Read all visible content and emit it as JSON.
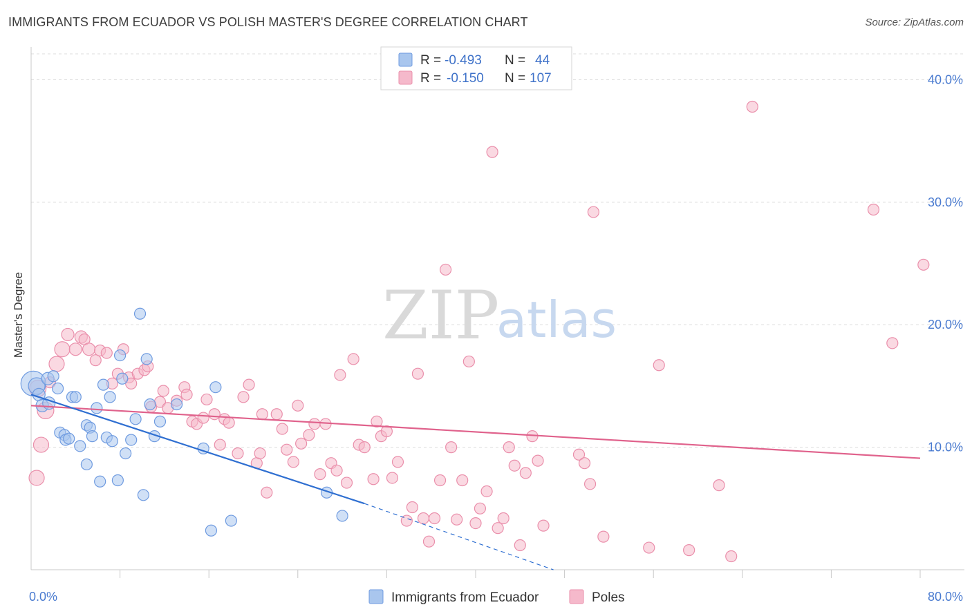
{
  "header": {
    "title": "IMMIGRANTS FROM ECUADOR VS POLISH MASTER'S DEGREE CORRELATION CHART",
    "source": "Source: ZipAtlas.com"
  },
  "watermark": {
    "part1": "ZIP",
    "part2": "atlas"
  },
  "colors": {
    "blue_fill": "#a9c6ee",
    "blue_stroke": "#6f9be0",
    "blue_line": "#2f6fd1",
    "pink_fill": "#f5b9cb",
    "pink_stroke": "#ea8fab",
    "pink_line": "#e0628c",
    "grid": "#dcdcdc",
    "tick_text": "#4a7bd0"
  },
  "legend": {
    "rows": [
      {
        "r_label": "R =",
        "r_value": "-0.493",
        "n_label": "N =",
        "n_value": "44"
      },
      {
        "r_label": "R =",
        "r_value": "-0.150",
        "n_label": "N =",
        "n_value": "107"
      }
    ]
  },
  "bottom_legend": [
    "Immigrants from Ecuador",
    "Poles"
  ],
  "chart_data": {
    "type": "scatter",
    "title": "IMMIGRANTS FROM ECUADOR VS POLISH MASTER'S DEGREE CORRELATION CHART",
    "xlabel": "",
    "ylabel": "Master's Degree",
    "xlim": [
      0,
      80
    ],
    "ylim": [
      0,
      42
    ],
    "x_tick_labels": [
      {
        "value": 0,
        "label": "0.0%"
      },
      {
        "value": 80,
        "label": "80.0%"
      }
    ],
    "y_tick_labels": [
      {
        "value": 10,
        "label": "10.0%"
      },
      {
        "value": 20,
        "label": "20.0%"
      },
      {
        "value": 30,
        "label": "30.0%"
      },
      {
        "value": 40,
        "label": "40.0%"
      }
    ],
    "x_minor_ticks": [
      8,
      16,
      24,
      32,
      40,
      48,
      56,
      64,
      72,
      80
    ],
    "grid": true,
    "legend_position": "top-center",
    "series": [
      {
        "name": "Immigrants from Ecuador",
        "color": "blue",
        "R": -0.493,
        "N": 44,
        "trend": {
          "x": [
            0,
            30
          ],
          "y": [
            14.3,
            5.4
          ],
          "dashed_extension_to": [
            47,
            0
          ]
        },
        "points": [
          [
            0.2,
            15.2,
            18
          ],
          [
            0.5,
            15.0,
            12
          ],
          [
            0.7,
            14.3,
            9
          ],
          [
            1.0,
            13.4,
            9
          ],
          [
            1.5,
            15.6,
            9
          ],
          [
            1.6,
            13.6,
            9
          ],
          [
            2.0,
            15.8,
            8
          ],
          [
            2.4,
            14.8,
            8
          ],
          [
            2.6,
            11.2,
            8
          ],
          [
            3.0,
            11.0,
            8
          ],
          [
            3.1,
            10.6,
            8
          ],
          [
            3.4,
            10.7,
            8
          ],
          [
            3.7,
            14.1,
            8
          ],
          [
            4.0,
            14.1,
            8
          ],
          [
            4.4,
            10.1,
            8
          ],
          [
            5.0,
            11.8,
            8
          ],
          [
            5.0,
            8.6,
            8
          ],
          [
            5.3,
            11.6,
            8
          ],
          [
            5.5,
            10.9,
            8
          ],
          [
            5.9,
            13.2,
            8
          ],
          [
            6.2,
            7.2,
            8
          ],
          [
            6.5,
            15.1,
            8
          ],
          [
            6.8,
            10.8,
            8
          ],
          [
            7.1,
            14.1,
            8
          ],
          [
            7.3,
            10.5,
            8
          ],
          [
            7.8,
            7.3,
            8
          ],
          [
            8.0,
            17.5,
            8
          ],
          [
            8.2,
            15.6,
            8
          ],
          [
            8.5,
            9.5,
            8
          ],
          [
            9.0,
            10.6,
            8
          ],
          [
            9.4,
            12.3,
            8
          ],
          [
            9.8,
            20.9,
            8
          ],
          [
            10.1,
            6.1,
            8
          ],
          [
            10.4,
            17.2,
            8
          ],
          [
            10.7,
            13.5,
            8
          ],
          [
            11.1,
            10.9,
            8
          ],
          [
            11.6,
            12.1,
            8
          ],
          [
            13.1,
            13.5,
            8
          ],
          [
            15.5,
            9.9,
            8
          ],
          [
            16.2,
            3.2,
            8
          ],
          [
            16.6,
            14.9,
            8
          ],
          [
            18.0,
            4.0,
            8
          ],
          [
            26.6,
            6.3,
            8
          ],
          [
            28.0,
            4.4,
            8
          ]
        ]
      },
      {
        "name": "Poles",
        "color": "pink",
        "R": -0.15,
        "N": 107,
        "trend": {
          "x": [
            0,
            80
          ],
          "y": [
            13.4,
            9.1
          ]
        },
        "points": [
          [
            0.5,
            7.5,
            11
          ],
          [
            0.6,
            14.8,
            12
          ],
          [
            0.9,
            10.2,
            11
          ],
          [
            1.3,
            13.0,
            12
          ],
          [
            1.7,
            15.3,
            8
          ],
          [
            2.3,
            16.8,
            11
          ],
          [
            2.8,
            18.0,
            11
          ],
          [
            3.3,
            19.2,
            9
          ],
          [
            4.0,
            18.0,
            9
          ],
          [
            4.5,
            19.0,
            9
          ],
          [
            4.8,
            18.8,
            8
          ],
          [
            5.2,
            18.0,
            9
          ],
          [
            5.8,
            17.1,
            8
          ],
          [
            6.2,
            17.9,
            8
          ],
          [
            6.8,
            17.7,
            8
          ],
          [
            7.3,
            15.2,
            8
          ],
          [
            7.8,
            16.0,
            8
          ],
          [
            8.3,
            18.0,
            8
          ],
          [
            8.8,
            15.7,
            8
          ],
          [
            9.0,
            15.2,
            8
          ],
          [
            9.6,
            16.0,
            8
          ],
          [
            10.2,
            16.3,
            8
          ],
          [
            10.5,
            16.6,
            8
          ],
          [
            10.8,
            13.3,
            8
          ],
          [
            11.6,
            13.7,
            8
          ],
          [
            11.9,
            14.6,
            8
          ],
          [
            12.3,
            13.2,
            8
          ],
          [
            13.1,
            13.8,
            8
          ],
          [
            13.8,
            14.9,
            8
          ],
          [
            14.0,
            14.3,
            8
          ],
          [
            14.5,
            12.1,
            8
          ],
          [
            14.9,
            11.9,
            8
          ],
          [
            15.5,
            12.4,
            8
          ],
          [
            15.8,
            13.9,
            8
          ],
          [
            16.5,
            12.7,
            8
          ],
          [
            17.0,
            10.2,
            8
          ],
          [
            17.4,
            12.3,
            8
          ],
          [
            17.8,
            12.0,
            8
          ],
          [
            18.6,
            9.5,
            8
          ],
          [
            19.1,
            14.1,
            8
          ],
          [
            19.6,
            15.1,
            8
          ],
          [
            20.3,
            8.7,
            8
          ],
          [
            20.6,
            9.5,
            8
          ],
          [
            20.8,
            12.7,
            8
          ],
          [
            21.2,
            6.3,
            8
          ],
          [
            22.1,
            12.7,
            8
          ],
          [
            22.6,
            11.5,
            8
          ],
          [
            23.0,
            9.8,
            8
          ],
          [
            23.6,
            8.8,
            8
          ],
          [
            24.0,
            13.4,
            8
          ],
          [
            24.3,
            10.3,
            8
          ],
          [
            25.0,
            11.0,
            8
          ],
          [
            25.5,
            11.9,
            8
          ],
          [
            26.0,
            7.8,
            8
          ],
          [
            26.5,
            11.9,
            8
          ],
          [
            27.0,
            8.7,
            8
          ],
          [
            27.5,
            8.1,
            8
          ],
          [
            27.8,
            15.9,
            8
          ],
          [
            28.4,
            7.1,
            8
          ],
          [
            29.0,
            17.2,
            8
          ],
          [
            29.5,
            10.2,
            8
          ],
          [
            30.0,
            10.0,
            8
          ],
          [
            30.8,
            7.4,
            8
          ],
          [
            31.1,
            12.1,
            8
          ],
          [
            31.5,
            10.9,
            8
          ],
          [
            32.0,
            11.3,
            8
          ],
          [
            32.5,
            7.5,
            8
          ],
          [
            33.0,
            8.8,
            8
          ],
          [
            33.8,
            4.0,
            8
          ],
          [
            34.3,
            5.1,
            8
          ],
          [
            34.8,
            16.0,
            8
          ],
          [
            35.3,
            4.2,
            8
          ],
          [
            35.8,
            2.3,
            8
          ],
          [
            36.3,
            4.2,
            8
          ],
          [
            36.8,
            7.3,
            8
          ],
          [
            37.3,
            24.5,
            8
          ],
          [
            37.8,
            10.0,
            8
          ],
          [
            38.3,
            4.1,
            8
          ],
          [
            38.8,
            7.3,
            8
          ],
          [
            39.4,
            17.0,
            8
          ],
          [
            40.0,
            3.8,
            8
          ],
          [
            40.4,
            5.0,
            8
          ],
          [
            41.0,
            6.4,
            8
          ],
          [
            41.5,
            34.1,
            8
          ],
          [
            42.0,
            3.4,
            8
          ],
          [
            42.5,
            4.2,
            8
          ],
          [
            43.0,
            10.0,
            8
          ],
          [
            43.5,
            8.5,
            8
          ],
          [
            44.0,
            2.0,
            8
          ],
          [
            44.5,
            7.9,
            8
          ],
          [
            45.1,
            10.9,
            8
          ],
          [
            45.6,
            8.9,
            8
          ],
          [
            46.1,
            3.6,
            8
          ],
          [
            49.3,
            9.4,
            8
          ],
          [
            49.8,
            8.7,
            8
          ],
          [
            50.3,
            7.0,
            8
          ],
          [
            50.6,
            29.2,
            8
          ],
          [
            51.5,
            2.7,
            8
          ],
          [
            55.6,
            1.8,
            8
          ],
          [
            56.5,
            16.7,
            8
          ],
          [
            59.2,
            1.6,
            8
          ],
          [
            61.9,
            6.9,
            8
          ],
          [
            63.0,
            1.1,
            8
          ],
          [
            64.9,
            37.8,
            8
          ],
          [
            75.8,
            29.4,
            8
          ],
          [
            77.5,
            18.5,
            8
          ],
          [
            80.3,
            24.9,
            8
          ]
        ]
      }
    ]
  }
}
